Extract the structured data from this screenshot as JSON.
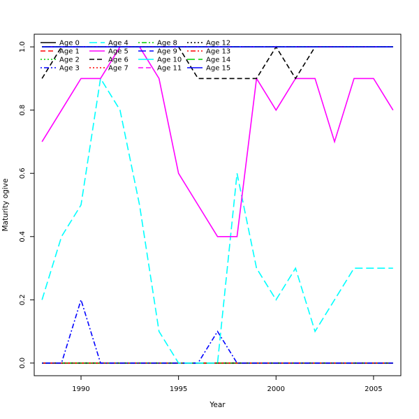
{
  "chart_data": {
    "type": "line",
    "title": "",
    "xlabel": "Year",
    "ylabel": "Maturity ogive",
    "xlim": [
      1987.6,
      2006.4
    ],
    "ylim": [
      -0.04,
      1.04
    ],
    "xticks": [
      1990,
      1995,
      2000,
      2005
    ],
    "yticks": [
      0.0,
      0.2,
      0.4,
      0.6,
      0.8,
      1.0
    ],
    "ytick_labels": [
      "0.0",
      "0.2",
      "0.4",
      "0.6",
      "0.8",
      "1.0"
    ],
    "grid": false,
    "legend_position": "top-left",
    "x": [
      1988,
      1989,
      1990,
      1991,
      1992,
      1993,
      1994,
      1995,
      1996,
      1997,
      1998,
      1999,
      2000,
      2001,
      2002,
      2003,
      2004,
      2005,
      2006
    ],
    "series": [
      {
        "name": "Age 0",
        "color": "#000000",
        "dash": "solid",
        "values": [
          0,
          0,
          0,
          0,
          0,
          0,
          0,
          0,
          0,
          0,
          0,
          0,
          0,
          0,
          0,
          0,
          0,
          0,
          0
        ]
      },
      {
        "name": "Age 1",
        "color": "#ff0000",
        "dash": "dashed",
        "values": [
          0,
          0,
          0,
          0,
          0,
          0,
          0,
          0,
          0,
          0,
          0,
          0,
          0,
          0,
          0,
          0,
          0,
          0,
          0
        ]
      },
      {
        "name": "Age 2",
        "color": "#00cd00",
        "dash": "dotted",
        "values": [
          0,
          0,
          0,
          0,
          0,
          0,
          0,
          0,
          0,
          0,
          0,
          0,
          0,
          0,
          0,
          0,
          0,
          0,
          0
        ]
      },
      {
        "name": "Age 3",
        "color": "#0000ff",
        "dash": "dotdash",
        "values": [
          0,
          0,
          0.2,
          0,
          0,
          0,
          0,
          0,
          0,
          0.1,
          0,
          0,
          0,
          0,
          0,
          0,
          0,
          0,
          0
        ]
      },
      {
        "name": "Age 4",
        "color": "#00ffff",
        "dash": "longdash",
        "values": [
          0.2,
          0.4,
          0.5,
          0.9,
          0.8,
          0.5,
          0.1,
          0,
          0,
          0,
          0.6,
          0.3,
          0.2,
          0.3,
          0.1,
          0.2,
          0.3,
          0.3,
          0.3
        ]
      },
      {
        "name": "Age 5",
        "color": "#ff00ff",
        "dash": "solid",
        "values": [
          0.7,
          0.8,
          0.9,
          0.9,
          1.0,
          1.0,
          0.9,
          0.6,
          0.5,
          0.4,
          0.4,
          0.9,
          0.8,
          0.9,
          0.9,
          0.7,
          0.9,
          0.9,
          0.8
        ]
      },
      {
        "name": "Age 6",
        "color": "#000000",
        "dash": "dashed",
        "values": [
          0.9,
          1.0,
          1.0,
          1.0,
          1.0,
          1.0,
          1.0,
          1.0,
          0.9,
          0.9,
          0.9,
          0.9,
          1.0,
          0.9,
          1.0,
          1.0,
          1.0,
          1.0,
          1.0
        ]
      },
      {
        "name": "Age 7",
        "color": "#ff0000",
        "dash": "dotted",
        "values": [
          1,
          1,
          1,
          1,
          1,
          1,
          1,
          1,
          1,
          1,
          1,
          1,
          1,
          1,
          1,
          1,
          1,
          1,
          1
        ]
      },
      {
        "name": "Age 8",
        "color": "#00cd00",
        "dash": "dotdash",
        "values": [
          1,
          1,
          1,
          1,
          1,
          1,
          1,
          1,
          1,
          1,
          1,
          1,
          1,
          1,
          1,
          1,
          1,
          1,
          1
        ]
      },
      {
        "name": "Age 9",
        "color": "#0000ff",
        "dash": "longdash",
        "values": [
          1,
          1,
          1,
          1,
          1,
          1,
          1,
          1,
          1,
          1,
          1,
          1,
          1,
          1,
          1,
          1,
          1,
          1,
          1
        ]
      },
      {
        "name": "Age 10",
        "color": "#00ffff",
        "dash": "solid",
        "values": [
          1,
          1,
          1,
          1,
          1,
          1,
          1,
          1,
          1,
          1,
          1,
          1,
          1,
          1,
          1,
          1,
          1,
          1,
          1
        ]
      },
      {
        "name": "Age 11",
        "color": "#ff00ff",
        "dash": "dashed",
        "values": [
          1,
          1,
          1,
          1,
          1,
          1,
          1,
          1,
          1,
          1,
          1,
          1,
          1,
          1,
          1,
          1,
          1,
          1,
          1
        ]
      },
      {
        "name": "Age 12",
        "color": "#000000",
        "dash": "dotted",
        "values": [
          1,
          1,
          1,
          1,
          1,
          1,
          1,
          1,
          1,
          1,
          1,
          1,
          1,
          1,
          1,
          1,
          1,
          1,
          1
        ]
      },
      {
        "name": "Age 13",
        "color": "#ff0000",
        "dash": "dotdash",
        "values": [
          1,
          1,
          1,
          1,
          1,
          1,
          1,
          1,
          1,
          1,
          1,
          1,
          1,
          1,
          1,
          1,
          1,
          1,
          1
        ]
      },
      {
        "name": "Age 14",
        "color": "#00cd00",
        "dash": "longdash",
        "values": [
          1,
          1,
          1,
          1,
          1,
          1,
          1,
          1,
          1,
          1,
          1,
          1,
          1,
          1,
          1,
          1,
          1,
          1,
          1
        ]
      },
      {
        "name": "Age 15",
        "color": "#0000ff",
        "dash": "solid",
        "values": [
          1,
          1,
          1,
          1,
          1,
          1,
          1,
          1,
          1,
          1,
          1,
          1,
          1,
          1,
          1,
          1,
          1,
          1,
          1
        ]
      }
    ]
  }
}
